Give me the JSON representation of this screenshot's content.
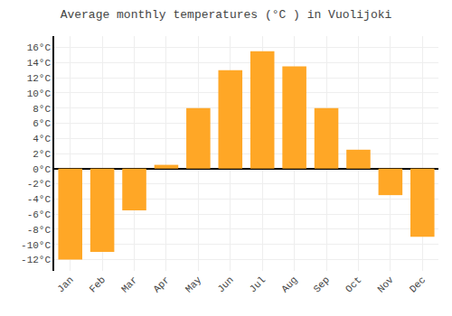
{
  "chart_data": {
    "type": "bar",
    "title": "Average monthly temperatures (°C ) in Vuolijoki",
    "categories": [
      "Jan",
      "Feb",
      "Mar",
      "Apr",
      "May",
      "Jun",
      "Jul",
      "Aug",
      "Sep",
      "Oct",
      "Nov",
      "Dec"
    ],
    "values": [
      -12,
      -11,
      -5.5,
      0.5,
      8,
      13,
      15.5,
      13.5,
      8,
      2.5,
      -3.5,
      -9
    ],
    "color": "#FFA726",
    "ylim": [
      -13.5,
      17.5
    ],
    "yticks": [
      {
        "value": -12,
        "label": "-12°C"
      },
      {
        "value": -10,
        "label": "-10°C"
      },
      {
        "value": -8,
        "label": "-8°C"
      },
      {
        "value": -6,
        "label": "-6°C"
      },
      {
        "value": -4,
        "label": "-4°C"
      },
      {
        "value": -2,
        "label": "-2°C"
      },
      {
        "value": 0,
        "label": "0°C"
      },
      {
        "value": 2,
        "label": "2°C"
      },
      {
        "value": 4,
        "label": "4°C"
      },
      {
        "value": 6,
        "label": "6°C"
      },
      {
        "value": 8,
        "label": "8°C"
      },
      {
        "value": 10,
        "label": "10°C"
      },
      {
        "value": 12,
        "label": "12°C"
      },
      {
        "value": 14,
        "label": "14°C"
      },
      {
        "value": 16,
        "label": "16°C"
      }
    ],
    "grid": true
  }
}
